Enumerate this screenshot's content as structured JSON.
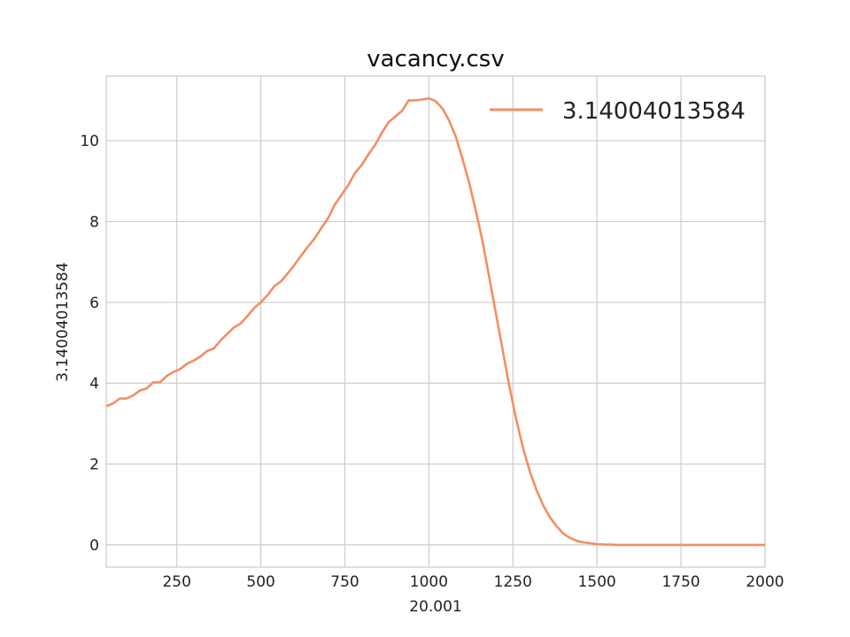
{
  "chart_data": {
    "type": "line",
    "title": "vacancy.csv",
    "xlabel": "20.001",
    "ylabel": "3.14004013584",
    "xlim": [
      40,
      2000
    ],
    "ylim": [
      -0.55,
      11.6
    ],
    "xticks": [
      250,
      500,
      750,
      1000,
      1250,
      1500,
      1750,
      2000
    ],
    "xtick_labels": [
      "250",
      "500",
      "750",
      "1000",
      "1250",
      "1500",
      "1750",
      "2000"
    ],
    "yticks": [
      0,
      2,
      4,
      6,
      8,
      10
    ],
    "ytick_labels": [
      "0",
      "2",
      "4",
      "6",
      "8",
      "10"
    ],
    "grid": true,
    "legend_position": "top-right",
    "series": [
      {
        "name": "3.14004013584",
        "color": "#f28e63",
        "x": [
          40,
          60,
          80,
          100,
          120,
          140,
          160,
          180,
          200,
          220,
          240,
          260,
          280,
          300,
          320,
          340,
          360,
          380,
          400,
          420,
          440,
          460,
          480,
          500,
          520,
          540,
          560,
          580,
          600,
          620,
          640,
          660,
          680,
          700,
          720,
          740,
          760,
          780,
          800,
          820,
          840,
          860,
          880,
          900,
          920,
          940,
          960,
          980,
          1000,
          1020,
          1040,
          1060,
          1080,
          1100,
          1120,
          1140,
          1160,
          1180,
          1200,
          1220,
          1240,
          1260,
          1280,
          1300,
          1320,
          1340,
          1360,
          1380,
          1400,
          1420,
          1440,
          1460,
          1480,
          1500,
          1520,
          1540,
          1560,
          1580,
          1600,
          1650,
          1700,
          1750,
          1800,
          1850,
          1900,
          1950,
          2000
        ],
        "y": [
          3.43,
          3.5,
          3.62,
          3.62,
          3.7,
          3.82,
          3.87,
          4.02,
          4.02,
          4.18,
          4.28,
          4.35,
          4.48,
          4.56,
          4.66,
          4.8,
          4.86,
          5.06,
          5.22,
          5.38,
          5.48,
          5.66,
          5.86,
          6.0,
          6.18,
          6.4,
          6.52,
          6.72,
          6.93,
          7.16,
          7.38,
          7.58,
          7.84,
          8.08,
          8.42,
          8.66,
          8.9,
          9.2,
          9.4,
          9.66,
          9.9,
          10.2,
          10.46,
          10.6,
          10.74,
          11.0,
          11.0,
          11.02,
          11.05,
          10.98,
          10.8,
          10.5,
          10.1,
          9.55,
          8.95,
          8.25,
          7.5,
          6.6,
          5.7,
          4.8,
          3.9,
          3.1,
          2.4,
          1.82,
          1.36,
          0.98,
          0.68,
          0.46,
          0.28,
          0.17,
          0.1,
          0.06,
          0.04,
          0.02,
          0.01,
          0.005,
          0.0,
          0.0,
          0.0,
          0.0,
          0.0,
          0.0,
          0.0,
          0.0,
          0.0,
          0.0,
          0.0
        ]
      }
    ]
  }
}
